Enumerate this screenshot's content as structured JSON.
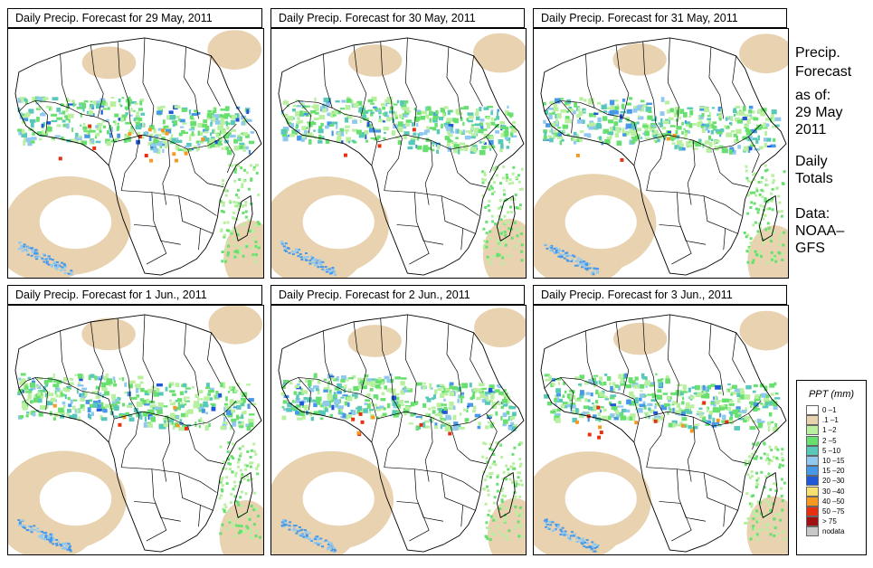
{
  "panels": [
    {
      "title": "Daily Precip. Forecast for  29 May, 2011"
    },
    {
      "title": "Daily Precip. Forecast for  30 May, 2011"
    },
    {
      "title": "Daily Precip. Forecast for  31 May, 2011"
    },
    {
      "title": "Daily Precip. Forecast for  1 Jun., 2011"
    },
    {
      "title": "Daily Precip. Forecast for  2 Jun., 2011"
    },
    {
      "title": "Daily Precip. Forecast for  3 Jun., 2011"
    }
  ],
  "side": {
    "title1": "Precip.",
    "title2": "Forecast",
    "asof": "as of:",
    "date1": "29 May",
    "date2": "2011",
    "daily1": "Daily",
    "daily2": "Totals",
    "data1": "Data:",
    "data2": "NOAA–",
    "data3": "GFS"
  },
  "legend": {
    "title": "PPT (mm)",
    "items": [
      {
        "label": "0 –1",
        "color": "#ffffff"
      },
      {
        "label": ".1 –1",
        "color": "#e8d2b0"
      },
      {
        "label": "1 –2",
        "color": "#b8f0a0"
      },
      {
        "label": "2 –5",
        "color": "#68e070"
      },
      {
        "label": "5 –10",
        "color": "#58c8b8"
      },
      {
        "label": "10 –15",
        "color": "#90c8f0"
      },
      {
        "label": "15 –20",
        "color": "#4898e8"
      },
      {
        "label": "20 –30",
        "color": "#2058d8"
      },
      {
        "label": "30 –40",
        "color": "#f8e070"
      },
      {
        "label": "40 –50",
        "color": "#f89820"
      },
      {
        "label": "50 –75",
        "color": "#e83010"
      },
      {
        "label": "> 75",
        "color": "#a01010"
      },
      {
        "label": "nodata",
        "color": "#c8c8c8"
      }
    ]
  }
}
